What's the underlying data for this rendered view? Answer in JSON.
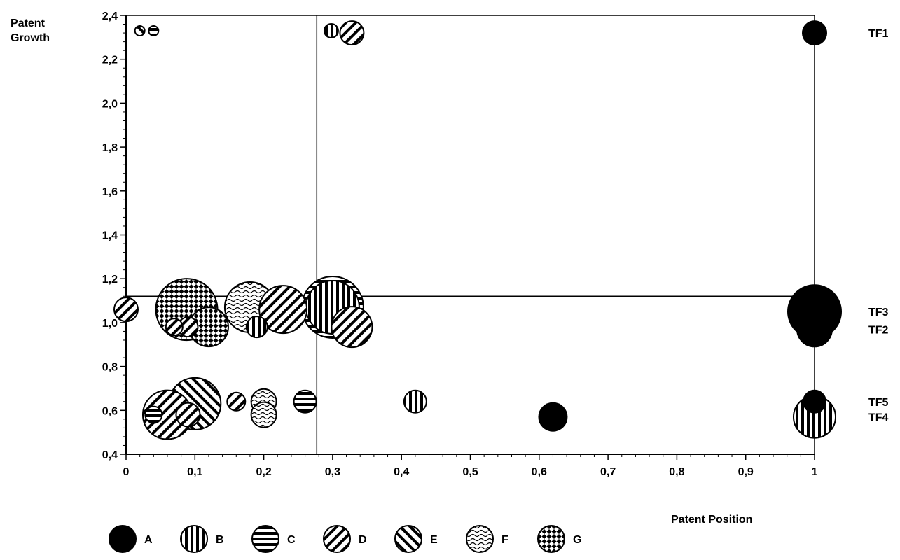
{
  "chart_data": {
    "type": "bubble",
    "xlabel": "Patent Position",
    "ylabel": [
      "Patent",
      "Growth"
    ],
    "xlim": [
      0,
      1
    ],
    "ylim": [
      0.4,
      2.4
    ],
    "xticks": [
      0,
      0.1,
      0.2,
      0.3,
      0.4,
      0.5,
      0.6,
      0.7,
      0.8,
      0.9,
      1
    ],
    "xtick_labels": [
      "0",
      "0,1",
      "0,2",
      "0,3",
      "0,4",
      "0,5",
      "0,6",
      "0,7",
      "0,8",
      "0,9",
      "1"
    ],
    "yticks": [
      0.4,
      0.6,
      0.8,
      1.0,
      1.2,
      1.4,
      1.6,
      1.8,
      2.0,
      2.2,
      2.4
    ],
    "ytick_labels": [
      "0,4",
      "0,6",
      "0,8",
      "1,0",
      "1,2",
      "1,4",
      "1,6",
      "1,8",
      "2,0",
      "2,2",
      "2,4"
    ],
    "reference_lines": {
      "x": 0.277,
      "y": 1.12
    },
    "grid": false,
    "legend_placement": "bottom",
    "series": [
      {
        "name": "A",
        "pattern": "solid"
      },
      {
        "name": "B",
        "pattern": "vertical"
      },
      {
        "name": "C",
        "pattern": "horizontal"
      },
      {
        "name": "D",
        "pattern": "diagonal-up"
      },
      {
        "name": "E",
        "pattern": "diagonal-down"
      },
      {
        "name": "F",
        "pattern": "wave"
      },
      {
        "name": "G",
        "pattern": "checker"
      }
    ],
    "points": [
      {
        "series": "A",
        "x": 1.0,
        "y": 2.32,
        "size": 17,
        "label": "TF1"
      },
      {
        "series": "A",
        "x": 1.0,
        "y": 0.97,
        "size": 25,
        "label": "TF2"
      },
      {
        "series": "A",
        "x": 1.0,
        "y": 1.05,
        "size": 38,
        "label": "TF3"
      },
      {
        "series": "B",
        "x": 1.0,
        "y": 0.57,
        "size": 30,
        "label": "TF4"
      },
      {
        "series": "A",
        "x": 1.0,
        "y": 0.64,
        "size": 16,
        "label": "TF5"
      },
      {
        "series": "E",
        "x": 0.02,
        "y": 2.33,
        "size": 7
      },
      {
        "series": "C",
        "x": 0.04,
        "y": 2.33,
        "size": 7
      },
      {
        "series": "B",
        "x": 0.298,
        "y": 2.33,
        "size": 10
      },
      {
        "series": "D",
        "x": 0.328,
        "y": 2.32,
        "size": 17
      },
      {
        "series": "D",
        "x": 0.0,
        "y": 1.06,
        "size": 17
      },
      {
        "series": "G",
        "x": 0.088,
        "y": 1.06,
        "size": 44
      },
      {
        "series": "D",
        "x": 0.07,
        "y": 0.98,
        "size": 12
      },
      {
        "series": "D",
        "x": 0.09,
        "y": 0.98,
        "size": 14
      },
      {
        "series": "G",
        "x": 0.12,
        "y": 0.98,
        "size": 28
      },
      {
        "series": "F",
        "x": 0.18,
        "y": 1.07,
        "size": 36
      },
      {
        "series": "B",
        "x": 0.19,
        "y": 0.98,
        "size": 15
      },
      {
        "series": "D",
        "x": 0.228,
        "y": 1.06,
        "size": 34
      },
      {
        "series": "C",
        "x": 0.3,
        "y": 1.07,
        "size": 44
      },
      {
        "series": "B",
        "x": 0.3,
        "y": 1.07,
        "size": 38
      },
      {
        "series": "D",
        "x": 0.328,
        "y": 0.98,
        "size": 29
      },
      {
        "series": "D",
        "x": 0.06,
        "y": 0.58,
        "size": 35
      },
      {
        "series": "C",
        "x": 0.04,
        "y": 0.58,
        "size": 12
      },
      {
        "series": "E",
        "x": 0.1,
        "y": 0.63,
        "size": 37
      },
      {
        "series": "D",
        "x": 0.09,
        "y": 0.58,
        "size": 17
      },
      {
        "series": "D",
        "x": 0.16,
        "y": 0.64,
        "size": 13
      },
      {
        "series": "F",
        "x": 0.2,
        "y": 0.64,
        "size": 18
      },
      {
        "series": "F",
        "x": 0.2,
        "y": 0.58,
        "size": 18
      },
      {
        "series": "C",
        "x": 0.26,
        "y": 0.64,
        "size": 16
      },
      {
        "series": "B",
        "x": 0.42,
        "y": 0.64,
        "size": 16
      },
      {
        "series": "A",
        "x": 0.62,
        "y": 0.57,
        "size": 20
      }
    ]
  }
}
